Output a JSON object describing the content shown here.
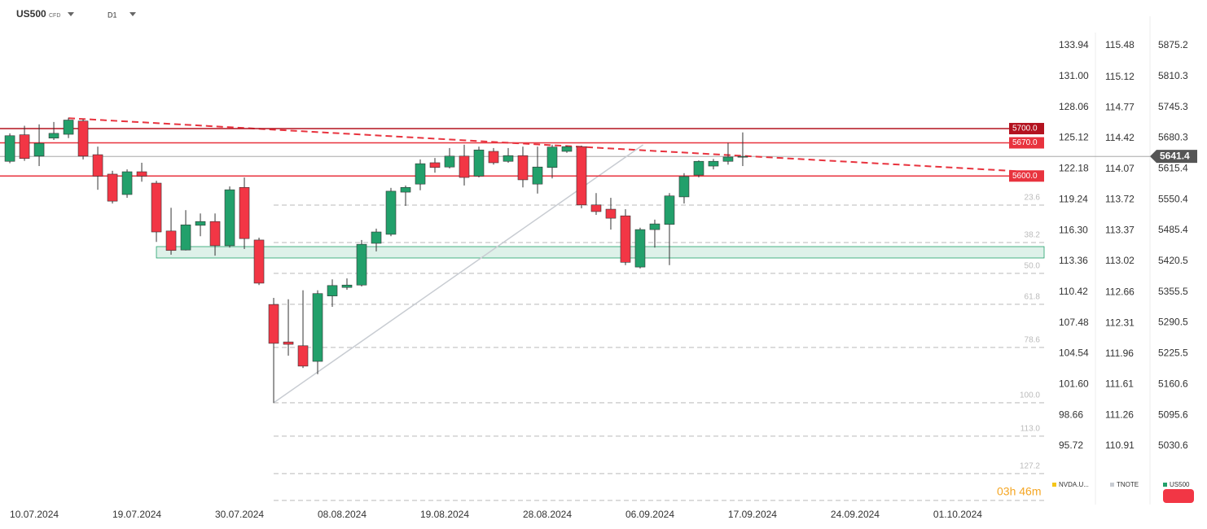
{
  "chart_data": {
    "type": "candlestick",
    "title": "US500",
    "subtitle": "CFD",
    "timeframe": "D1",
    "up_color": "#22a06b",
    "down_color": "#f23645",
    "candles": {
      "open": [
        5631,
        5687,
        5642,
        5680,
        5688,
        5716,
        5645,
        5604,
        5561,
        5609,
        5585,
        5484,
        5444,
        5496,
        5504,
        5453,
        5576,
        5465,
        5329,
        5250,
        5242,
        5209,
        5347,
        5365,
        5370,
        5458,
        5477,
        5566,
        5583,
        5628,
        5619,
        5642,
        5600,
        5652,
        5631,
        5643,
        5583,
        5618,
        5652,
        5662,
        5539,
        5530,
        5516,
        5408,
        5487,
        5498,
        5556,
        5602,
        5621,
        5631,
        5640
      ],
      "high": [
        5690,
        5706,
        5709,
        5714,
        5723,
        5720,
        5662,
        5611,
        5614,
        5628,
        5590,
        5533,
        5528,
        5521,
        5521,
        5578,
        5597,
        5470,
        5343,
        5340,
        5359,
        5359,
        5382,
        5384,
        5465,
        5489,
        5575,
        5580,
        5635,
        5638,
        5659,
        5666,
        5662,
        5659,
        5659,
        5662,
        5662,
        5666,
        5664,
        5664,
        5564,
        5554,
        5530,
        5491,
        5508,
        5564,
        5606,
        5633,
        5636,
        5670,
        5692
      ],
      "low": [
        5627,
        5632,
        5621,
        5676,
        5680,
        5635,
        5571,
        5542,
        5554,
        5588,
        5461,
        5434,
        5443,
        5473,
        5432,
        5449,
        5446,
        5370,
        5121,
        5221,
        5195,
        5182,
        5324,
        5360,
        5367,
        5441,
        5473,
        5537,
        5570,
        5607,
        5616,
        5580,
        5597,
        5624,
        5628,
        5576,
        5563,
        5595,
        5649,
        5532,
        5518,
        5487,
        5412,
        5405,
        5449,
        5412,
        5542,
        5597,
        5614,
        5624,
        5621
      ],
      "close": [
        5685,
        5637,
        5669,
        5690,
        5718,
        5642,
        5600,
        5547,
        5609,
        5600,
        5482,
        5443,
        5497,
        5504,
        5453,
        5571,
        5468,
        5374,
        5247,
        5245,
        5199,
        5352,
        5369,
        5370,
        5456,
        5482,
        5568,
        5576,
        5626,
        5618,
        5642,
        5597,
        5655,
        5628,
        5643,
        5592,
        5619,
        5661,
        5662,
        5539,
        5525,
        5511,
        5418,
        5487,
        5499,
        5558,
        5599,
        5631,
        5631,
        5640,
        5641.4
      ]
    },
    "xlim": [
      -0.67,
      70.56
    ],
    "xticks": [
      {
        "value": 2,
        "label": "10.07.2024"
      },
      {
        "value": 9,
        "label": "19.07.2024"
      },
      {
        "value": 16,
        "label": "30.07.2024"
      },
      {
        "value": 23,
        "label": "08.08.2024"
      },
      {
        "value": 30,
        "label": "19.08.2024"
      },
      {
        "value": 37,
        "label": "28.08.2024"
      },
      {
        "value": 44,
        "label": "06.09.2024"
      },
      {
        "value": 51,
        "label": "17.09.2024"
      },
      {
        "value": 58,
        "label": "24.09.2024"
      },
      {
        "value": 65,
        "label": "01.10.2024"
      }
    ],
    "ylim": [
      4906.9,
      5971.3
    ],
    "yticks": [
      5875.2,
      5810.3,
      5745.3,
      5680.3,
      5615.4,
      5550.4,
      5485.4,
      5420.5,
      5355.5,
      5290.5,
      5225.5,
      5160.6,
      5095.6,
      5030.6
    ],
    "axes": [
      {
        "name": "NVDA.U...",
        "color": "#f5c518",
        "ylim": [
          90.13,
          138.29
        ],
        "yticks": [
          133.94,
          131.0,
          128.06,
          125.12,
          122.18,
          119.24,
          116.3,
          113.36,
          110.42,
          107.48,
          104.54,
          101.6,
          98.66,
          95.72
        ]
      },
      {
        "name": "TNOTE",
        "color": "#c8ccd2",
        "ylim": [
          110.24,
          116.0
        ],
        "yticks": [
          115.48,
          115.12,
          114.77,
          114.42,
          114.07,
          113.72,
          113.37,
          113.02,
          112.66,
          112.31,
          111.96,
          111.61,
          111.26,
          110.91
        ]
      },
      {
        "name": "US500",
        "color": "#22a06b"
      }
    ],
    "levels": [
      {
        "value": 5700,
        "label": "5700.0",
        "color": "#b3121f"
      },
      {
        "value": 5670,
        "label": "5670.0",
        "color": "#e8333e"
      },
      {
        "value": 5600,
        "label": "5600.0",
        "color": "#e8333e"
      }
    ],
    "current_price": 5641.4,
    "fib": [
      {
        "label": "23.6",
        "price": 5538.7
      },
      {
        "label": "38.2",
        "price": 5459.8
      },
      {
        "label": "50.0",
        "price": 5394.6
      },
      {
        "label": "61.8",
        "price": 5329.4
      },
      {
        "label": "78.6",
        "price": 5238.4
      },
      {
        "label": "100.0",
        "price": 5121.7
      },
      {
        "label": "113.0",
        "price": 5051.4
      },
      {
        "label": "127.2",
        "price": 4972.4
      },
      {
        "price": 4915.7
      }
    ],
    "fib_start": 18,
    "zone": {
      "low": 5427.1,
      "high": 5451.1,
      "start": 10
    },
    "trendlines": [
      {
        "x": [
          4,
          70.56
        ],
        "y": [
          5722,
          5607
        ],
        "color": "#e8333e",
        "dashed": true
      },
      {
        "x": [
          18,
          43.2
        ],
        "y": [
          5121.7,
          5665.7
        ],
        "color": "#c8ccd2",
        "dashed": false
      }
    ],
    "countdown": "03h 46m"
  }
}
